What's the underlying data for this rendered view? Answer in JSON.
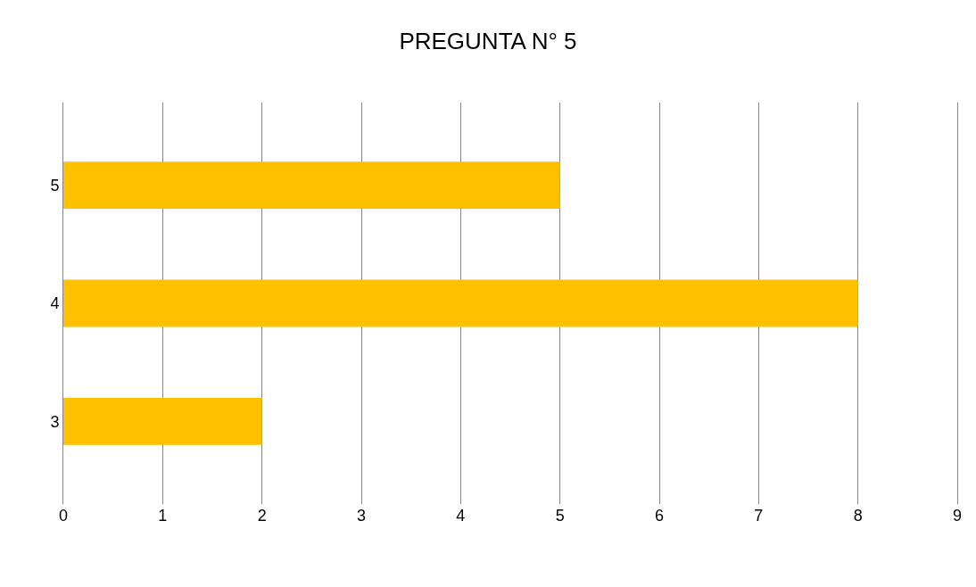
{
  "chart_data": {
    "type": "bar",
    "title": "PREGUNTA N° 5",
    "orientation": "horizontal",
    "categories": [
      "5",
      "4",
      "3"
    ],
    "values": [
      5,
      8,
      2
    ],
    "color": "#ffc000",
    "xlim": [
      0,
      9
    ],
    "xticks": [
      0,
      1,
      2,
      3,
      4,
      5,
      6,
      7,
      8,
      9
    ],
    "grid": "x"
  }
}
